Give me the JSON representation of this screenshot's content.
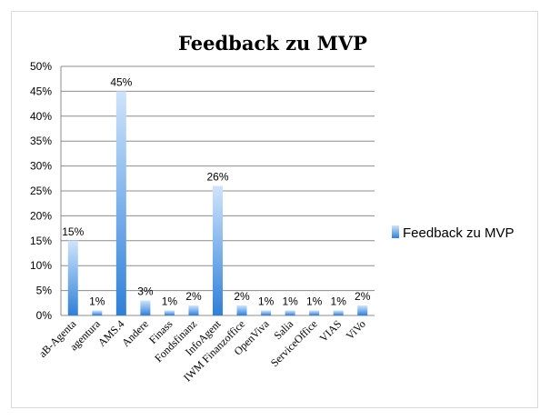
{
  "chart_data": {
    "type": "bar",
    "title": "Feedback zu MVP",
    "categories": [
      "aB-Agenta",
      "agentura",
      "AMS.4",
      "Andere",
      "Finass",
      "Fondsfinanz",
      "InfoAgent",
      "IWM Finanzoffice",
      "OpenViva",
      "Salia",
      "ServiceOffice",
      "VIAS",
      "ViVo"
    ],
    "series": [
      {
        "name": "Feedback zu MVP",
        "values": [
          15,
          1,
          45,
          3,
          1,
          2,
          26,
          2,
          1,
          1,
          1,
          1,
          2
        ],
        "labels": [
          "15%",
          "1%",
          "45%",
          "3%",
          "1%",
          "2%",
          "26%",
          "2%",
          "1%",
          "1%",
          "1%",
          "1%",
          "2%"
        ]
      }
    ],
    "ylim": [
      0,
      50
    ],
    "ytick_labels": [
      "0%",
      "5%",
      "10%",
      "15%",
      "20%",
      "25%",
      "30%",
      "35%",
      "40%",
      "45%",
      "50%"
    ],
    "grid": true,
    "legend_position": "right",
    "colors": {
      "bar_light": "#cfe4fb",
      "bar_mid": "#7fb2ec",
      "bar_dark": "#2f7fd8"
    }
  }
}
